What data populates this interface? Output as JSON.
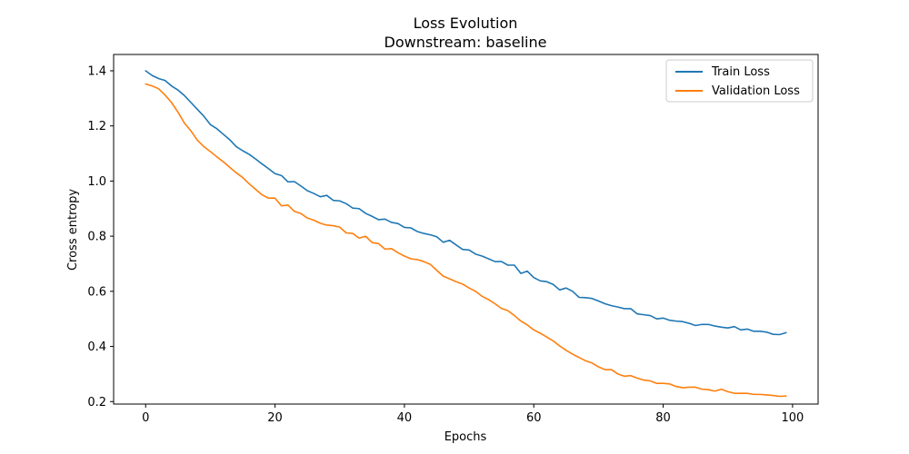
{
  "chart_data": {
    "type": "line",
    "title": "Loss Evolution",
    "subtitle": "Downstream: baseline",
    "xlabel": "Epochs",
    "ylabel": "Cross entropy",
    "xlim": [
      -4.95,
      103.95
    ],
    "ylim": [
      0.191,
      1.4592
    ],
    "xticks": [
      0,
      20,
      40,
      60,
      80,
      100
    ],
    "yticks": [
      0.2,
      0.4,
      0.6,
      0.8,
      1.0,
      1.2,
      1.4
    ],
    "xtick_labels": [
      "0",
      "20",
      "40",
      "60",
      "80",
      "100"
    ],
    "ytick_labels": [
      "0.2",
      "0.4",
      "0.6",
      "0.8",
      "1.0",
      "1.2",
      "1.4"
    ],
    "grid": false,
    "legend_position": "upper right",
    "x": [
      0,
      1,
      2,
      3,
      4,
      5,
      6,
      7,
      8,
      9,
      10,
      11,
      12,
      13,
      14,
      15,
      16,
      17,
      18,
      19,
      20,
      21,
      22,
      23,
      24,
      25,
      26,
      27,
      28,
      29,
      30,
      31,
      32,
      33,
      34,
      35,
      36,
      37,
      38,
      39,
      40,
      41,
      42,
      43,
      44,
      45,
      46,
      47,
      48,
      49,
      50,
      51,
      52,
      53,
      54,
      55,
      56,
      57,
      58,
      59,
      60,
      61,
      62,
      63,
      64,
      65,
      66,
      67,
      68,
      69,
      70,
      71,
      72,
      73,
      74,
      75,
      76,
      77,
      78,
      79,
      80,
      81,
      82,
      83,
      84,
      85,
      86,
      87,
      88,
      89,
      90,
      91,
      92,
      93,
      94,
      95,
      96,
      97,
      98,
      99
    ],
    "series": [
      {
        "name": "Train Loss",
        "color": "#1f77b4",
        "values": [
          1.4,
          1.383,
          1.372,
          1.365,
          1.345,
          1.33,
          1.31,
          1.285,
          1.26,
          1.235,
          1.205,
          1.19,
          1.17,
          1.15,
          1.125,
          1.11,
          1.097,
          1.08,
          1.062,
          1.045,
          1.027,
          1.02,
          0.997,
          0.998,
          0.982,
          0.965,
          0.955,
          0.943,
          0.948,
          0.93,
          0.928,
          0.918,
          0.902,
          0.9,
          0.883,
          0.872,
          0.86,
          0.862,
          0.85,
          0.846,
          0.832,
          0.83,
          0.817,
          0.81,
          0.805,
          0.798,
          0.778,
          0.785,
          0.768,
          0.752,
          0.75,
          0.735,
          0.728,
          0.718,
          0.708,
          0.708,
          0.695,
          0.695,
          0.665,
          0.673,
          0.65,
          0.638,
          0.635,
          0.625,
          0.605,
          0.612,
          0.6,
          0.578,
          0.577,
          0.574,
          0.565,
          0.555,
          0.548,
          0.543,
          0.537,
          0.537,
          0.518,
          0.515,
          0.512,
          0.5,
          0.503,
          0.495,
          0.492,
          0.49,
          0.484,
          0.476,
          0.48,
          0.48,
          0.474,
          0.47,
          0.467,
          0.472,
          0.46,
          0.463,
          0.455,
          0.455,
          0.452,
          0.444,
          0.443,
          0.45
        ]
      },
      {
        "name": "Validation Loss",
        "color": "#ff7f0e",
        "values": [
          1.352,
          1.345,
          1.335,
          1.312,
          1.285,
          1.25,
          1.21,
          1.182,
          1.148,
          1.125,
          1.107,
          1.088,
          1.07,
          1.05,
          1.03,
          1.013,
          0.99,
          0.97,
          0.95,
          0.938,
          0.938,
          0.91,
          0.913,
          0.89,
          0.882,
          0.866,
          0.858,
          0.847,
          0.84,
          0.838,
          0.833,
          0.812,
          0.81,
          0.793,
          0.8,
          0.777,
          0.773,
          0.753,
          0.755,
          0.74,
          0.728,
          0.718,
          0.715,
          0.708,
          0.698,
          0.676,
          0.655,
          0.645,
          0.635,
          0.626,
          0.612,
          0.6,
          0.582,
          0.57,
          0.555,
          0.538,
          0.53,
          0.512,
          0.492,
          0.478,
          0.46,
          0.448,
          0.434,
          0.42,
          0.402,
          0.386,
          0.372,
          0.36,
          0.348,
          0.34,
          0.326,
          0.316,
          0.316,
          0.3,
          0.292,
          0.294,
          0.285,
          0.278,
          0.275,
          0.266,
          0.266,
          0.264,
          0.255,
          0.25,
          0.252,
          0.252,
          0.245,
          0.243,
          0.238,
          0.245,
          0.236,
          0.23,
          0.23,
          0.23,
          0.226,
          0.226,
          0.224,
          0.222,
          0.219,
          0.22
        ]
      }
    ]
  }
}
